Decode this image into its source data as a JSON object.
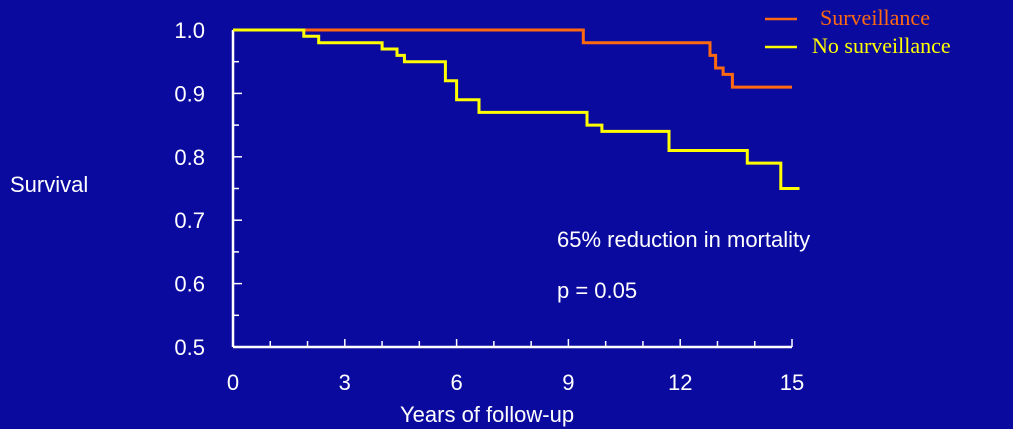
{
  "chart_data": {
    "type": "line",
    "step": true,
    "ylabel": "Survival",
    "xlabel": "Years of follow-up",
    "xlim": [
      0,
      15
    ],
    "ylim": [
      0.5,
      1.0
    ],
    "xticks": [
      0,
      3,
      6,
      9,
      12,
      15
    ],
    "yticks": [
      0.5,
      0.6,
      0.7,
      0.8,
      0.9,
      1.0
    ],
    "xtick_labels": [
      "0",
      "3",
      "6",
      "9",
      "12",
      "15"
    ],
    "ytick_labels": [
      "0.5",
      "0.6",
      "0.7",
      "0.8",
      "0.9",
      "1.0"
    ],
    "grid": false,
    "legend_position": "top-right",
    "series": [
      {
        "name": "Surveillance",
        "color": "#ff6a10",
        "x": [
          0,
          9.4,
          12.8,
          12.95,
          13.15,
          13.4,
          15
        ],
        "y": [
          1.0,
          0.98,
          0.96,
          0.94,
          0.93,
          0.91,
          0.91
        ]
      },
      {
        "name": "No surveillance",
        "color": "#ffff00",
        "x": [
          0,
          1.9,
          2.3,
          4.0,
          4.4,
          4.6,
          5.7,
          6.0,
          6.6,
          9.5,
          9.9,
          11.7,
          13.8,
          14.7,
          15.2
        ],
        "y": [
          1.0,
          0.99,
          0.98,
          0.97,
          0.96,
          0.95,
          0.92,
          0.89,
          0.87,
          0.85,
          0.84,
          0.81,
          0.79,
          0.75,
          0.75
        ]
      }
    ],
    "annotations": [
      "65% reduction in mortality",
      "p = 0.05"
    ]
  }
}
